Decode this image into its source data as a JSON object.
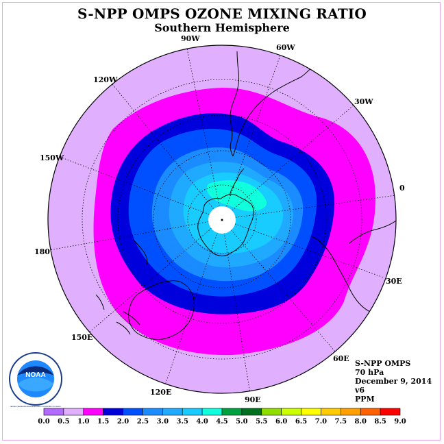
{
  "title": "S-NPP OMPS OZONE MIXING RATIO",
  "subtitle": "Southern Hemisphere",
  "meridian_labels": [
    "90W",
    "60W",
    "30W",
    "0",
    "30E",
    "60E",
    "90E",
    "120E",
    "150E",
    "180",
    "150W",
    "120W"
  ],
  "info": {
    "instrument": "S-NPP OMPS",
    "level": "70 hPa",
    "date": "December 9, 2014",
    "version": "v6",
    "units": "PPM"
  },
  "logo_text": "NOAA",
  "logo_ring_text": "NATIONAL OCEANIC AND ATMOSPHERIC ADMINISTRATION · U.S. DEPARTMENT OF COMMERCE",
  "colorbar": {
    "ticks": [
      "0.0",
      "0.5",
      "1.0",
      "1.5",
      "2.0",
      "2.5",
      "3.0",
      "3.5",
      "4.0",
      "4.5",
      "5.0",
      "5.5",
      "6.0",
      "6.5",
      "7.0",
      "7.5",
      "8.0",
      "8.5",
      "9.0"
    ],
    "colors": [
      "#b36bff",
      "#e0b0ff",
      "#ff00ff",
      "#0000dd",
      "#0050ff",
      "#1a8cff",
      "#20aaff",
      "#18ccff",
      "#10ffdd",
      "#00a040",
      "#007020",
      "#90dd00",
      "#ccff00",
      "#ffff00",
      "#ffcc00",
      "#ffa000",
      "#ff6000",
      "#ff0000",
      "#8b5a3c"
    ]
  },
  "colors": {
    "frame": "#e8a8e8",
    "outer": "#e0b0ff",
    "magenta": "#ff00ff",
    "dark_blue": "#0000dd",
    "blue": "#0050ff",
    "mid_blue": "#1a8cff",
    "light_blue": "#20aaff",
    "cyan": "#18ccff",
    "aqua": "#10ffdd"
  }
}
